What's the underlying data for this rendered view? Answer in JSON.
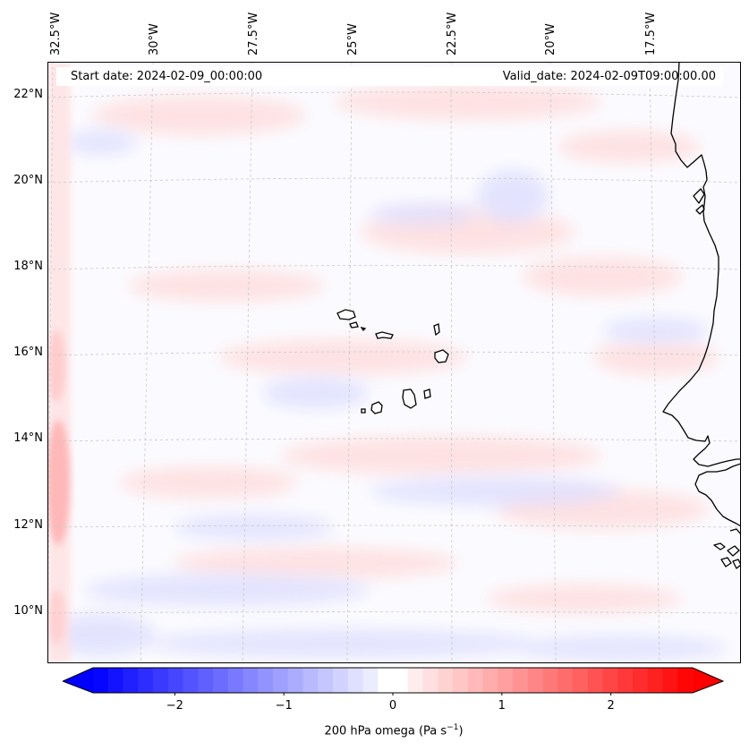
{
  "map": {
    "header": {
      "start_date": "Start date: 2024-02-09_00:00:00",
      "valid_date": "Valid_date: 2024-02-09T09:00:00.00"
    },
    "lon_labels": [
      "32.5°W",
      "30°W",
      "27.5°W",
      "25°W",
      "22.5°W",
      "20°W",
      "17.5°W"
    ],
    "lat_labels": [
      "22°N",
      "20°N",
      "18°N",
      "16°N",
      "14°N",
      "12°N",
      "10°N"
    ],
    "extent": {
      "lon_min": -32.5,
      "lon_max": -15.0,
      "lat_min": 8.9,
      "lat_max": 22.7
    },
    "colors": {
      "coastline": "#000000",
      "gridline": "#c8c8c8",
      "negative": "#0000ff",
      "positive": "#ff0000",
      "neutral": "#ffffff"
    }
  },
  "colorbar": {
    "min": -2.75,
    "max": 2.75,
    "ticks": [
      "−2",
      "−1",
      "0",
      "1",
      "2"
    ],
    "tick_values": [
      -2,
      -1,
      0,
      1,
      2
    ],
    "label_main": "200 hPa omega (Pa s",
    "label_exp": "−1",
    "label_close": ")"
  }
}
